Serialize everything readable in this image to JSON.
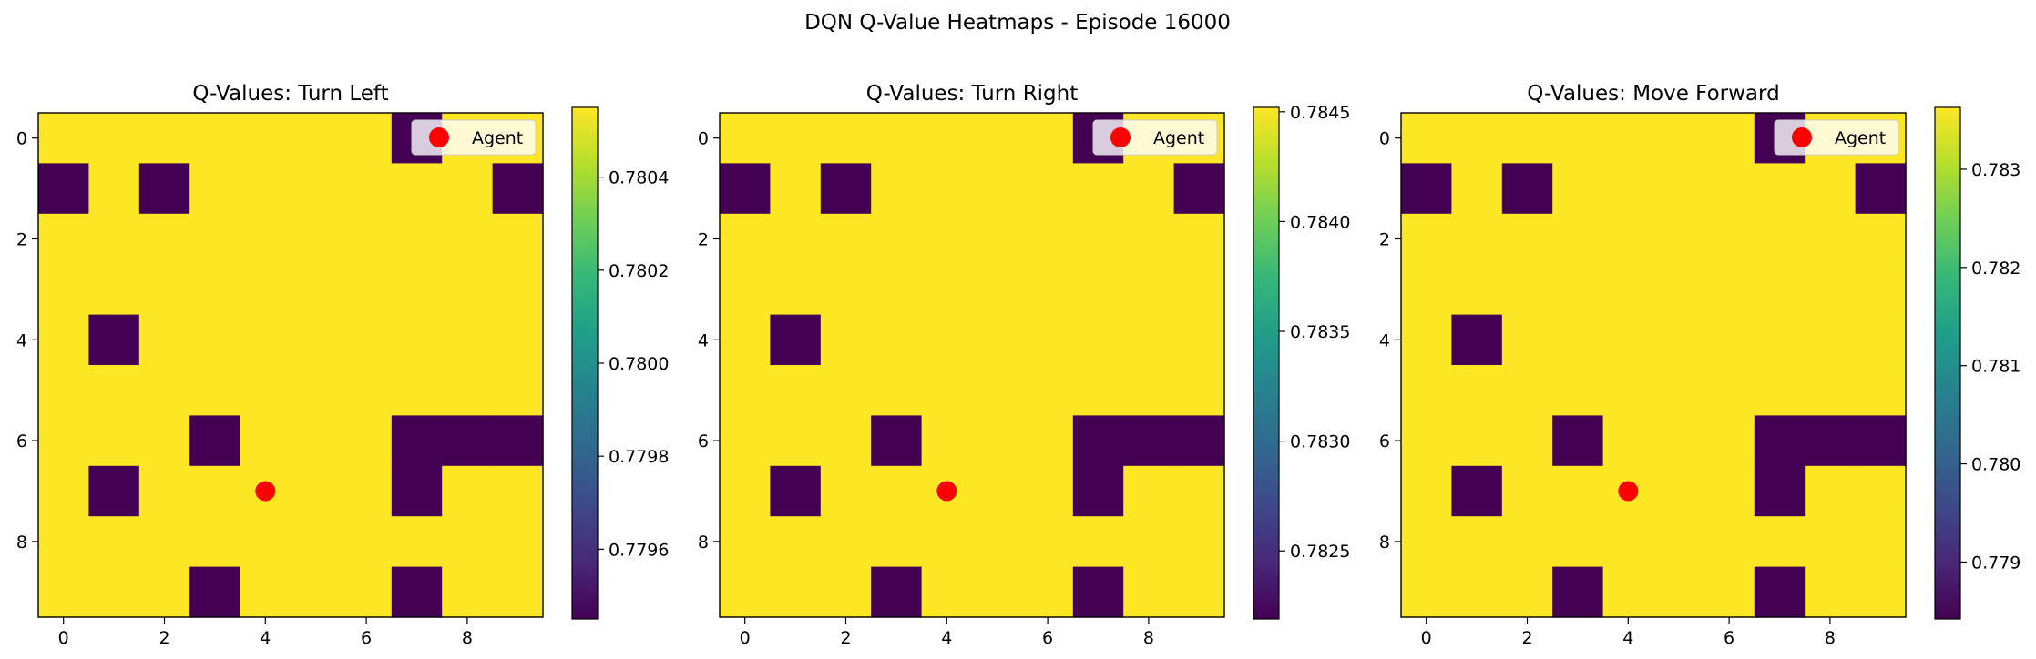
{
  "figure_title": "DQN Q-Value Heatmaps - Episode 16000",
  "colors": {
    "high": "#fde725",
    "low": "#440154",
    "agent_marker": "#ff0000",
    "colormap": [
      "#440154",
      "#482878",
      "#3e4989",
      "#31688e",
      "#26828e",
      "#1f9e89",
      "#35b779",
      "#6ece58",
      "#b5de2b",
      "#fde725"
    ]
  },
  "chart_data": [
    {
      "type": "heatmap",
      "title": "Q-Values: Turn Left",
      "legend": {
        "label": "Agent",
        "placement": "top-right"
      },
      "agent": {
        "x": 4,
        "y": 7
      },
      "x_ticks": [
        "0",
        "2",
        "4",
        "6",
        "8"
      ],
      "y_ticks": [
        "0",
        "2",
        "4",
        "6",
        "8"
      ],
      "colorbar": {
        "range": [
          0.77945,
          0.78055
        ],
        "ticks": [
          "0.7796",
          "0.7798",
          "0.7800",
          "0.7802",
          "0.7804"
        ],
        "tick_values": [
          0.7796,
          0.7798,
          0.78,
          0.7802,
          0.7804
        ]
      },
      "grid": [
        [
          1,
          1,
          1,
          1,
          1,
          1,
          1,
          0,
          1,
          1
        ],
        [
          0,
          1,
          0,
          1,
          1,
          1,
          1,
          1,
          1,
          0
        ],
        [
          1,
          1,
          1,
          1,
          1,
          1,
          1,
          1,
          1,
          1
        ],
        [
          1,
          1,
          1,
          1,
          1,
          1,
          1,
          1,
          1,
          1
        ],
        [
          1,
          0,
          1,
          1,
          1,
          1,
          1,
          1,
          1,
          1
        ],
        [
          1,
          1,
          1,
          1,
          1,
          1,
          1,
          1,
          1,
          1
        ],
        [
          1,
          1,
          1,
          0,
          1,
          1,
          1,
          0,
          0,
          0
        ],
        [
          1,
          0,
          1,
          1,
          1,
          1,
          1,
          0,
          1,
          1
        ],
        [
          1,
          1,
          1,
          1,
          1,
          1,
          1,
          1,
          1,
          1
        ],
        [
          1,
          1,
          1,
          0,
          1,
          1,
          1,
          0,
          1,
          1
        ]
      ]
    },
    {
      "type": "heatmap",
      "title": "Q-Values: Turn Right",
      "legend": {
        "label": "Agent",
        "placement": "top-right"
      },
      "agent": {
        "x": 4,
        "y": 7
      },
      "x_ticks": [
        "0",
        "2",
        "4",
        "6",
        "8"
      ],
      "y_ticks": [
        "0",
        "2",
        "4",
        "6",
        "8"
      ],
      "colorbar": {
        "range": [
          0.78219,
          0.78452
        ],
        "ticks": [
          "0.7825",
          "0.7830",
          "0.7835",
          "0.7840",
          "0.7845"
        ],
        "tick_values": [
          0.7825,
          0.783,
          0.7835,
          0.784,
          0.7845
        ]
      },
      "grid": [
        [
          1,
          1,
          1,
          1,
          1,
          1,
          1,
          0,
          1,
          1
        ],
        [
          0,
          1,
          0,
          1,
          1,
          1,
          1,
          1,
          1,
          0
        ],
        [
          1,
          1,
          1,
          1,
          1,
          1,
          1,
          1,
          1,
          1
        ],
        [
          1,
          1,
          1,
          1,
          1,
          1,
          1,
          1,
          1,
          1
        ],
        [
          1,
          0,
          1,
          1,
          1,
          1,
          1,
          1,
          1,
          1
        ],
        [
          1,
          1,
          1,
          1,
          1,
          1,
          1,
          1,
          1,
          1
        ],
        [
          1,
          1,
          1,
          0,
          1,
          1,
          1,
          0,
          0,
          0
        ],
        [
          1,
          0,
          1,
          1,
          1,
          1,
          1,
          0,
          1,
          1
        ],
        [
          1,
          1,
          1,
          1,
          1,
          1,
          1,
          1,
          1,
          1
        ],
        [
          1,
          1,
          1,
          0,
          1,
          1,
          1,
          0,
          1,
          1
        ]
      ]
    },
    {
      "type": "heatmap",
      "title": "Q-Values: Move Forward",
      "legend": {
        "label": "Agent",
        "placement": "top-right"
      },
      "agent": {
        "x": 4,
        "y": 7
      },
      "x_ticks": [
        "0",
        "2",
        "4",
        "6",
        "8"
      ],
      "y_ticks": [
        "0",
        "2",
        "4",
        "6",
        "8"
      ],
      "colorbar": {
        "range": [
          0.77842,
          0.78363
        ],
        "ticks": [
          "0.779",
          "0.780",
          "0.781",
          "0.782",
          "0.783"
        ],
        "tick_values": [
          0.779,
          0.78,
          0.781,
          0.782,
          0.783
        ]
      },
      "grid": [
        [
          1,
          1,
          1,
          1,
          1,
          1,
          1,
          0,
          1,
          1
        ],
        [
          0,
          1,
          0,
          1,
          1,
          1,
          1,
          1,
          1,
          0
        ],
        [
          1,
          1,
          1,
          1,
          1,
          1,
          1,
          1,
          1,
          1
        ],
        [
          1,
          1,
          1,
          1,
          1,
          1,
          1,
          1,
          1,
          1
        ],
        [
          1,
          0,
          1,
          1,
          1,
          1,
          1,
          1,
          1,
          1
        ],
        [
          1,
          1,
          1,
          1,
          1,
          1,
          1,
          1,
          1,
          1
        ],
        [
          1,
          1,
          1,
          0,
          1,
          1,
          1,
          0,
          0,
          0
        ],
        [
          1,
          0,
          1,
          1,
          1,
          1,
          1,
          0,
          1,
          1
        ],
        [
          1,
          1,
          1,
          1,
          1,
          1,
          1,
          1,
          1,
          1
        ],
        [
          1,
          1,
          1,
          0,
          1,
          1,
          1,
          0,
          1,
          1
        ]
      ]
    }
  ]
}
